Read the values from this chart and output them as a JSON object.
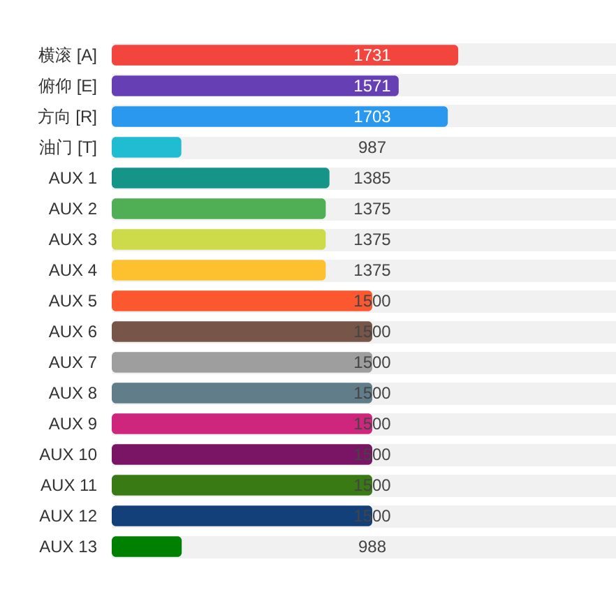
{
  "chart_data": {
    "type": "bar",
    "orientation": "horizontal",
    "categories": [
      "横滚 [A]",
      "俯仰 [E]",
      "方向 [R]",
      "油门 [T]",
      "AUX 1",
      "AUX 2",
      "AUX 3",
      "AUX 4",
      "AUX 5",
      "AUX 6",
      "AUX 7",
      "AUX 8",
      "AUX 9",
      "AUX 10",
      "AUX 11",
      "AUX 12",
      "AUX 13"
    ],
    "values": [
      1731,
      1571,
      1703,
      987,
      1385,
      1375,
      1375,
      1375,
      1500,
      1500,
      1500,
      1500,
      1500,
      1500,
      1500,
      1500,
      988
    ],
    "colors": [
      "#f1453d",
      "#673fb4",
      "#2b98f0",
      "#1fbcd2",
      "#159588",
      "#50ae55",
      "#cdda49",
      "#fdc02f",
      "#fc5830",
      "#785549",
      "#9e9e9e",
      "#617d8a",
      "#cf267d",
      "#7a1464",
      "#3a7a14",
      "#14407a",
      "#008000"
    ],
    "xlim": [
      800,
      2200
    ],
    "data_labels": true,
    "tick_labels": "y",
    "grid": "y"
  }
}
